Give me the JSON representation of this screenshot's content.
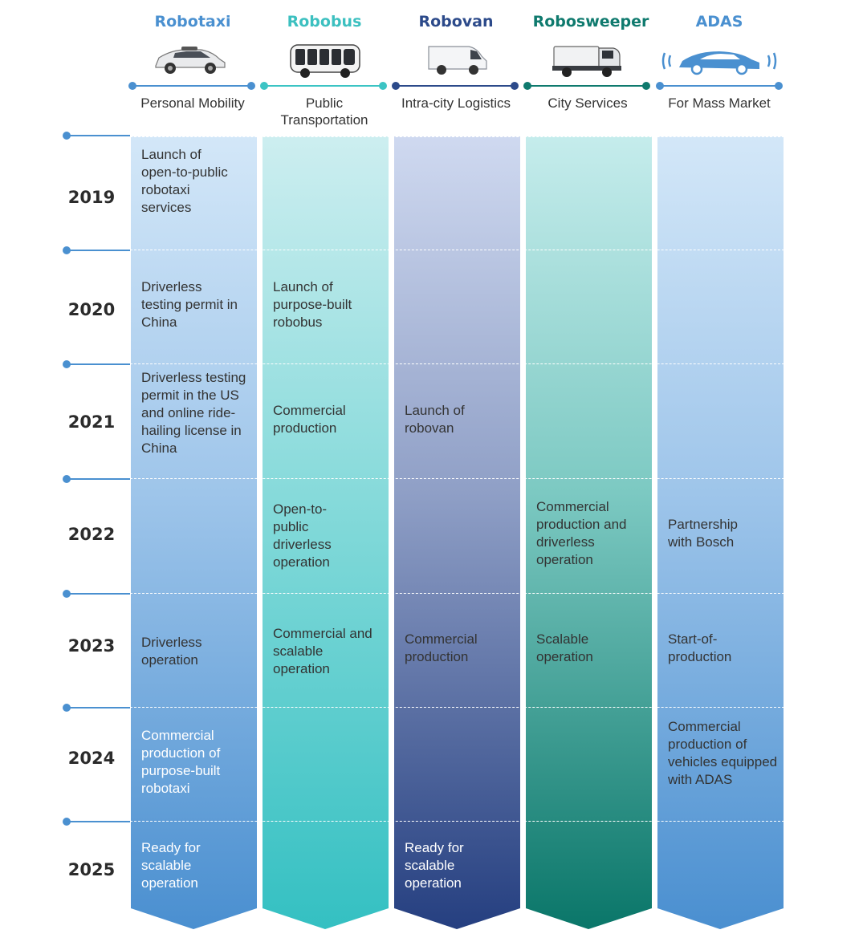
{
  "columns": [
    {
      "title": "Robotaxi",
      "subtitle": "Personal Mobility",
      "color": "#4a90d0"
    },
    {
      "title": "Robobus",
      "subtitle": "Public Transportation",
      "color": "#3cc4c4"
    },
    {
      "title": "Robovan",
      "subtitle": "Intra-city Logistics",
      "color": "#2c4a8a"
    },
    {
      "title": "Robosweeper",
      "subtitle": "City Services",
      "color": "#0f7a6e"
    },
    {
      "title": "ADAS",
      "subtitle": "For Mass Market",
      "color": "#4a90d0"
    }
  ],
  "years": [
    "2019",
    "2020",
    "2021",
    "2022",
    "2023",
    "2024",
    "2025"
  ],
  "cells": {
    "robotaxi_2019": "Launch of open-to-public robotaxi services",
    "robotaxi_2020": "Driverless testing permit in China",
    "robotaxi_2021": "Driverless testing permit in the US and online ride-hailing license in China",
    "robotaxi_2023": "Driverless operation",
    "robotaxi_2024": "Commercial production of purpose-built robotaxi",
    "robotaxi_2025": "Ready for scalable operation",
    "robobus_2020": "Launch of purpose-built robobus",
    "robobus_2021": "Commercial production",
    "robobus_2022": "Open-to-public driverless operation",
    "robobus_2023": "Commercial and scalable operation",
    "robovan_2021": "Launch of robovan",
    "robovan_2023": "Commercial production",
    "robovan_2025": "Ready for scalable operation",
    "robosweeper_2022": "Commercial production and driverless operation",
    "robosweeper_2023": "Scalable operation",
    "adas_2022": "Partnership with Bosch",
    "adas_2023": "Start-of-production",
    "adas_2024": "Commercial production of vehicles equipped with ADAS"
  },
  "icons": [
    "robotaxi-car-icon",
    "robobus-icon",
    "robovan-icon",
    "robosweeper-icon",
    "adas-car-signal-icon"
  ]
}
